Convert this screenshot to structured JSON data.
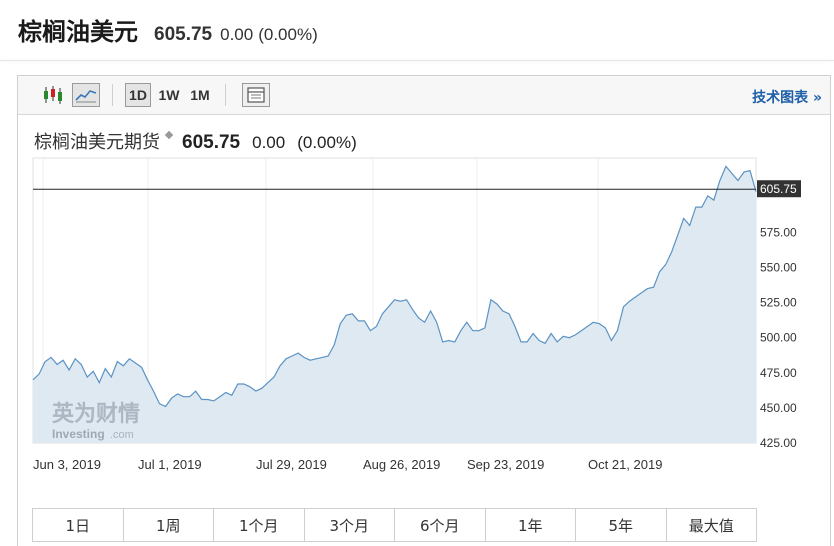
{
  "header": {
    "title": "棕榈油美元",
    "price": "605.75",
    "change": "0.00",
    "change_pct": "(0.00%)"
  },
  "toolbar": {
    "icons": [
      "candlestick-icon",
      "line-chart-icon",
      "settings-panel-icon"
    ],
    "periods": [
      {
        "label": "1D",
        "selected": true
      },
      {
        "label": "1W",
        "selected": false
      },
      {
        "label": "1M",
        "selected": false
      }
    ],
    "tech_link": "技术图表 »"
  },
  "chart_title": {
    "name": "棕榈油美元期货",
    "price": "605.75",
    "change": "0.00",
    "change_pct": "(0.00%)"
  },
  "watermark": {
    "cn": "英为财情",
    "en": "Investing",
    "suffix": ".com"
  },
  "chart_data": {
    "type": "area",
    "x_tick_labels": [
      "Jun 3, 2019",
      "Jul 1, 2019",
      "Jul 29, 2019",
      "Aug 26, 2019",
      "Sep 23, 2019",
      "Oct 21, 2019"
    ],
    "y_tick_labels": [
      "575.00",
      "550.00",
      "525.00",
      "500.00",
      "475.00",
      "450.00",
      "425.00"
    ],
    "ylim": [
      425,
      628
    ],
    "last_value": 605.75,
    "last_value_label": "605.75",
    "line_color": "#5b93c4",
    "fill_color": "#dfe9f2",
    "values": [
      470,
      474,
      483,
      486,
      481,
      484,
      477,
      485,
      481,
      472,
      476,
      468,
      478,
      472,
      483,
      480,
      485,
      482,
      479,
      470,
      462,
      453,
      451,
      457,
      460,
      458,
      458,
      462,
      456,
      456,
      455,
      458,
      461,
      459,
      467,
      467,
      465,
      462,
      464,
      468,
      472,
      480,
      485,
      487,
      489,
      486,
      484,
      485,
      486,
      487,
      495,
      510,
      516,
      517,
      512,
      512,
      505,
      508,
      517,
      522,
      527,
      526,
      527,
      520,
      514,
      511,
      519,
      511,
      497,
      498,
      497,
      505,
      511,
      505,
      505,
      507,
      527,
      524,
      519,
      517,
      508,
      497,
      497,
      503,
      498,
      496,
      503,
      497,
      501,
      500,
      502,
      505,
      508,
      511,
      510,
      507,
      498,
      505,
      522,
      526,
      529,
      532,
      535,
      536,
      547,
      552,
      561,
      573,
      585,
      580,
      593,
      593,
      601,
      598,
      612,
      622,
      617,
      612,
      618,
      619,
      604
    ]
  },
  "range_tabs": [
    "1日",
    "1周",
    "1个月",
    "3个月",
    "6个月",
    "1年",
    "5年",
    "最大值"
  ]
}
